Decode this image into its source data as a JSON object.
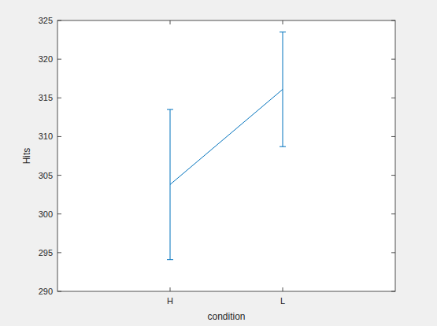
{
  "chart_data": {
    "type": "line",
    "categories": [
      "H",
      "L"
    ],
    "values": [
      303.8,
      316.1
    ],
    "errors": [
      9.7,
      7.4
    ],
    "color": "#0072bd",
    "xlabel": "condition",
    "ylabel": "Hits",
    "ylim": [
      290,
      325
    ],
    "yticks": [
      290,
      295,
      300,
      305,
      310,
      315,
      320,
      325
    ],
    "grid": false
  }
}
